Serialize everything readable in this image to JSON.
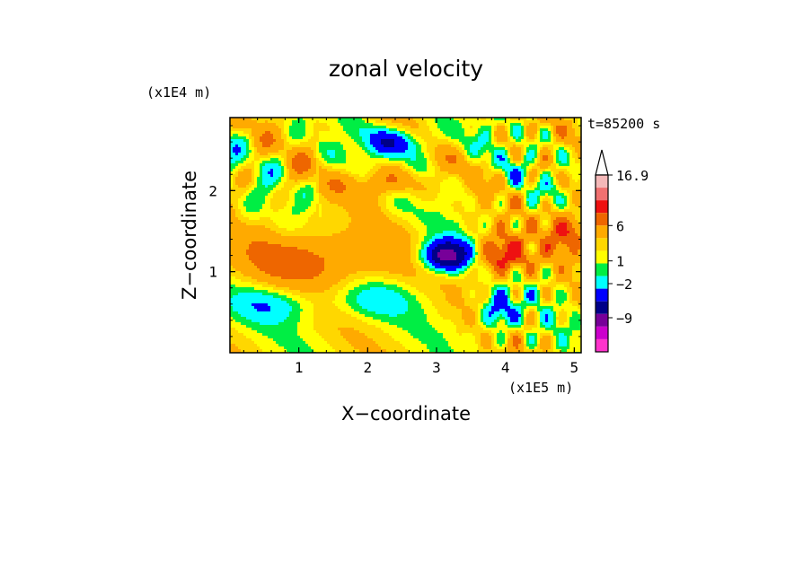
{
  "chart_data": {
    "type": "heatmap",
    "title": "zonal velocity",
    "xlabel": "X−coordinate",
    "ylabel": "Z−coordinate",
    "x_unit": "(x1E5 m)",
    "y_unit": "(x1E4 m)",
    "time_label": "t=85200 s",
    "xlim": [
      0.0,
      5.1
    ],
    "ylim": [
      0.0,
      2.9
    ],
    "x_ticks": [
      "1",
      "2",
      "3",
      "4",
      "5"
    ],
    "x_tick_values": [
      1,
      2,
      3,
      4,
      5
    ],
    "y_ticks": [
      "1",
      "2"
    ],
    "y_tick_values": [
      1,
      2
    ],
    "colorbar": {
      "labels": [
        "16.9",
        "6",
        "1",
        "−2",
        "−9"
      ],
      "colors_top_to_bottom": [
        "#f4b8b8",
        "#f07070",
        "#ee1111",
        "#ee6600",
        "#ffaa00",
        "#ffd700",
        "#ffff00",
        "#00ee44",
        "#00ffff",
        "#0000ff",
        "#000088",
        "#770099",
        "#cc00cc",
        "#ff33cc"
      ]
    },
    "features": [
      {
        "kind": "negative_core",
        "x": 3.0,
        "z": 1.25,
        "level": "-9"
      },
      {
        "kind": "positive_core",
        "x": 3.9,
        "z": 1.25,
        "level": "6"
      },
      {
        "kind": "negative_band",
        "x": 2.2,
        "z": 2.55,
        "level": "-2"
      },
      {
        "kind": "positive_band",
        "x": 1.2,
        "z": 1.2,
        "level": "1"
      }
    ]
  },
  "colors": {
    "background": "#ffffff",
    "frame": "#000000"
  }
}
